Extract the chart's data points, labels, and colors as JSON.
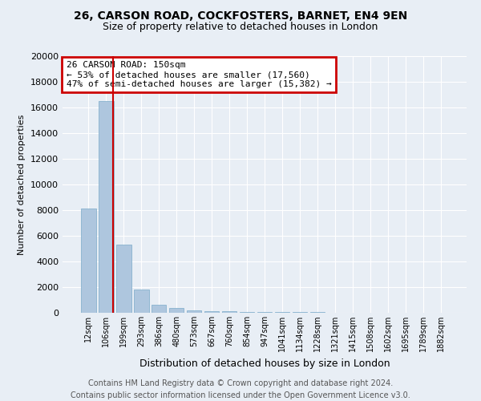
{
  "title1": "26, CARSON ROAD, COCKFOSTERS, BARNET, EN4 9EN",
  "title2": "Size of property relative to detached houses in London",
  "xlabel": "Distribution of detached houses by size in London",
  "ylabel": "Number of detached properties",
  "categories": [
    "12sqm",
    "106sqm",
    "199sqm",
    "293sqm",
    "386sqm",
    "480sqm",
    "573sqm",
    "667sqm",
    "760sqm",
    "854sqm",
    "947sqm",
    "1041sqm",
    "1134sqm",
    "1228sqm",
    "1321sqm",
    "1415sqm",
    "1508sqm",
    "1602sqm",
    "1695sqm",
    "1789sqm",
    "1882sqm"
  ],
  "values": [
    8100,
    16500,
    5300,
    1800,
    650,
    350,
    200,
    150,
    100,
    80,
    60,
    50,
    40,
    35,
    30,
    25,
    20,
    18,
    15,
    12,
    10
  ],
  "bar_color": "#aec6de",
  "bar_edge_color": "#7aaac8",
  "vline_color": "#cc0000",
  "annotation_title": "26 CARSON ROAD: 150sqm",
  "annotation_line1": "← 53% of detached houses are smaller (17,560)",
  "annotation_line2": "47% of semi-detached houses are larger (15,382) →",
  "annotation_box_color": "#cc0000",
  "ylim": [
    0,
    20000
  ],
  "yticks": [
    0,
    2000,
    4000,
    6000,
    8000,
    10000,
    12000,
    14000,
    16000,
    18000,
    20000
  ],
  "footer1": "Contains HM Land Registry data © Crown copyright and database right 2024.",
  "footer2": "Contains public sector information licensed under the Open Government Licence v3.0.",
  "bg_color": "#e8eef5",
  "grid_color": "#ffffff",
  "title1_fontsize": 10,
  "title2_fontsize": 9,
  "annotation_fontsize": 8,
  "footer_fontsize": 7,
  "ylabel_fontsize": 8,
  "xlabel_fontsize": 9
}
